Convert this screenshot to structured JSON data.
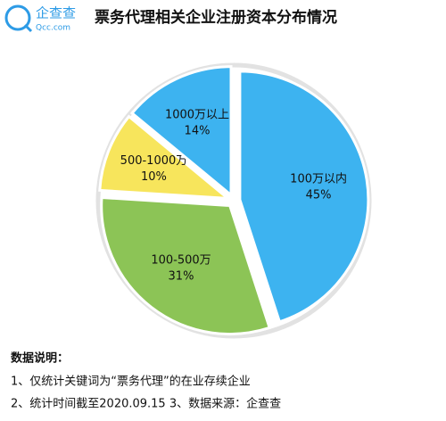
{
  "logo": {
    "name": "企查查",
    "site": "Qcc.com"
  },
  "chart_data": {
    "type": "pie",
    "title": "票务代理相关企业注册资本分布情况",
    "categories": [
      "100万以内",
      "100-500万",
      "500-1000万",
      "1000万以上"
    ],
    "values": [
      45,
      31,
      10,
      14
    ],
    "value_labels": [
      "45%",
      "31%",
      "10%",
      "14%"
    ],
    "colors": [
      "#3db3f0",
      "#8cc456",
      "#f7e55c",
      "#3db3f0"
    ]
  },
  "notes": {
    "heading": "数据说明：",
    "lines": [
      "1、仅统计关键词为“票务代理”的在业存续企业",
      "2、统计时间截至2020.09.15   3、数据来源：企查查"
    ]
  }
}
